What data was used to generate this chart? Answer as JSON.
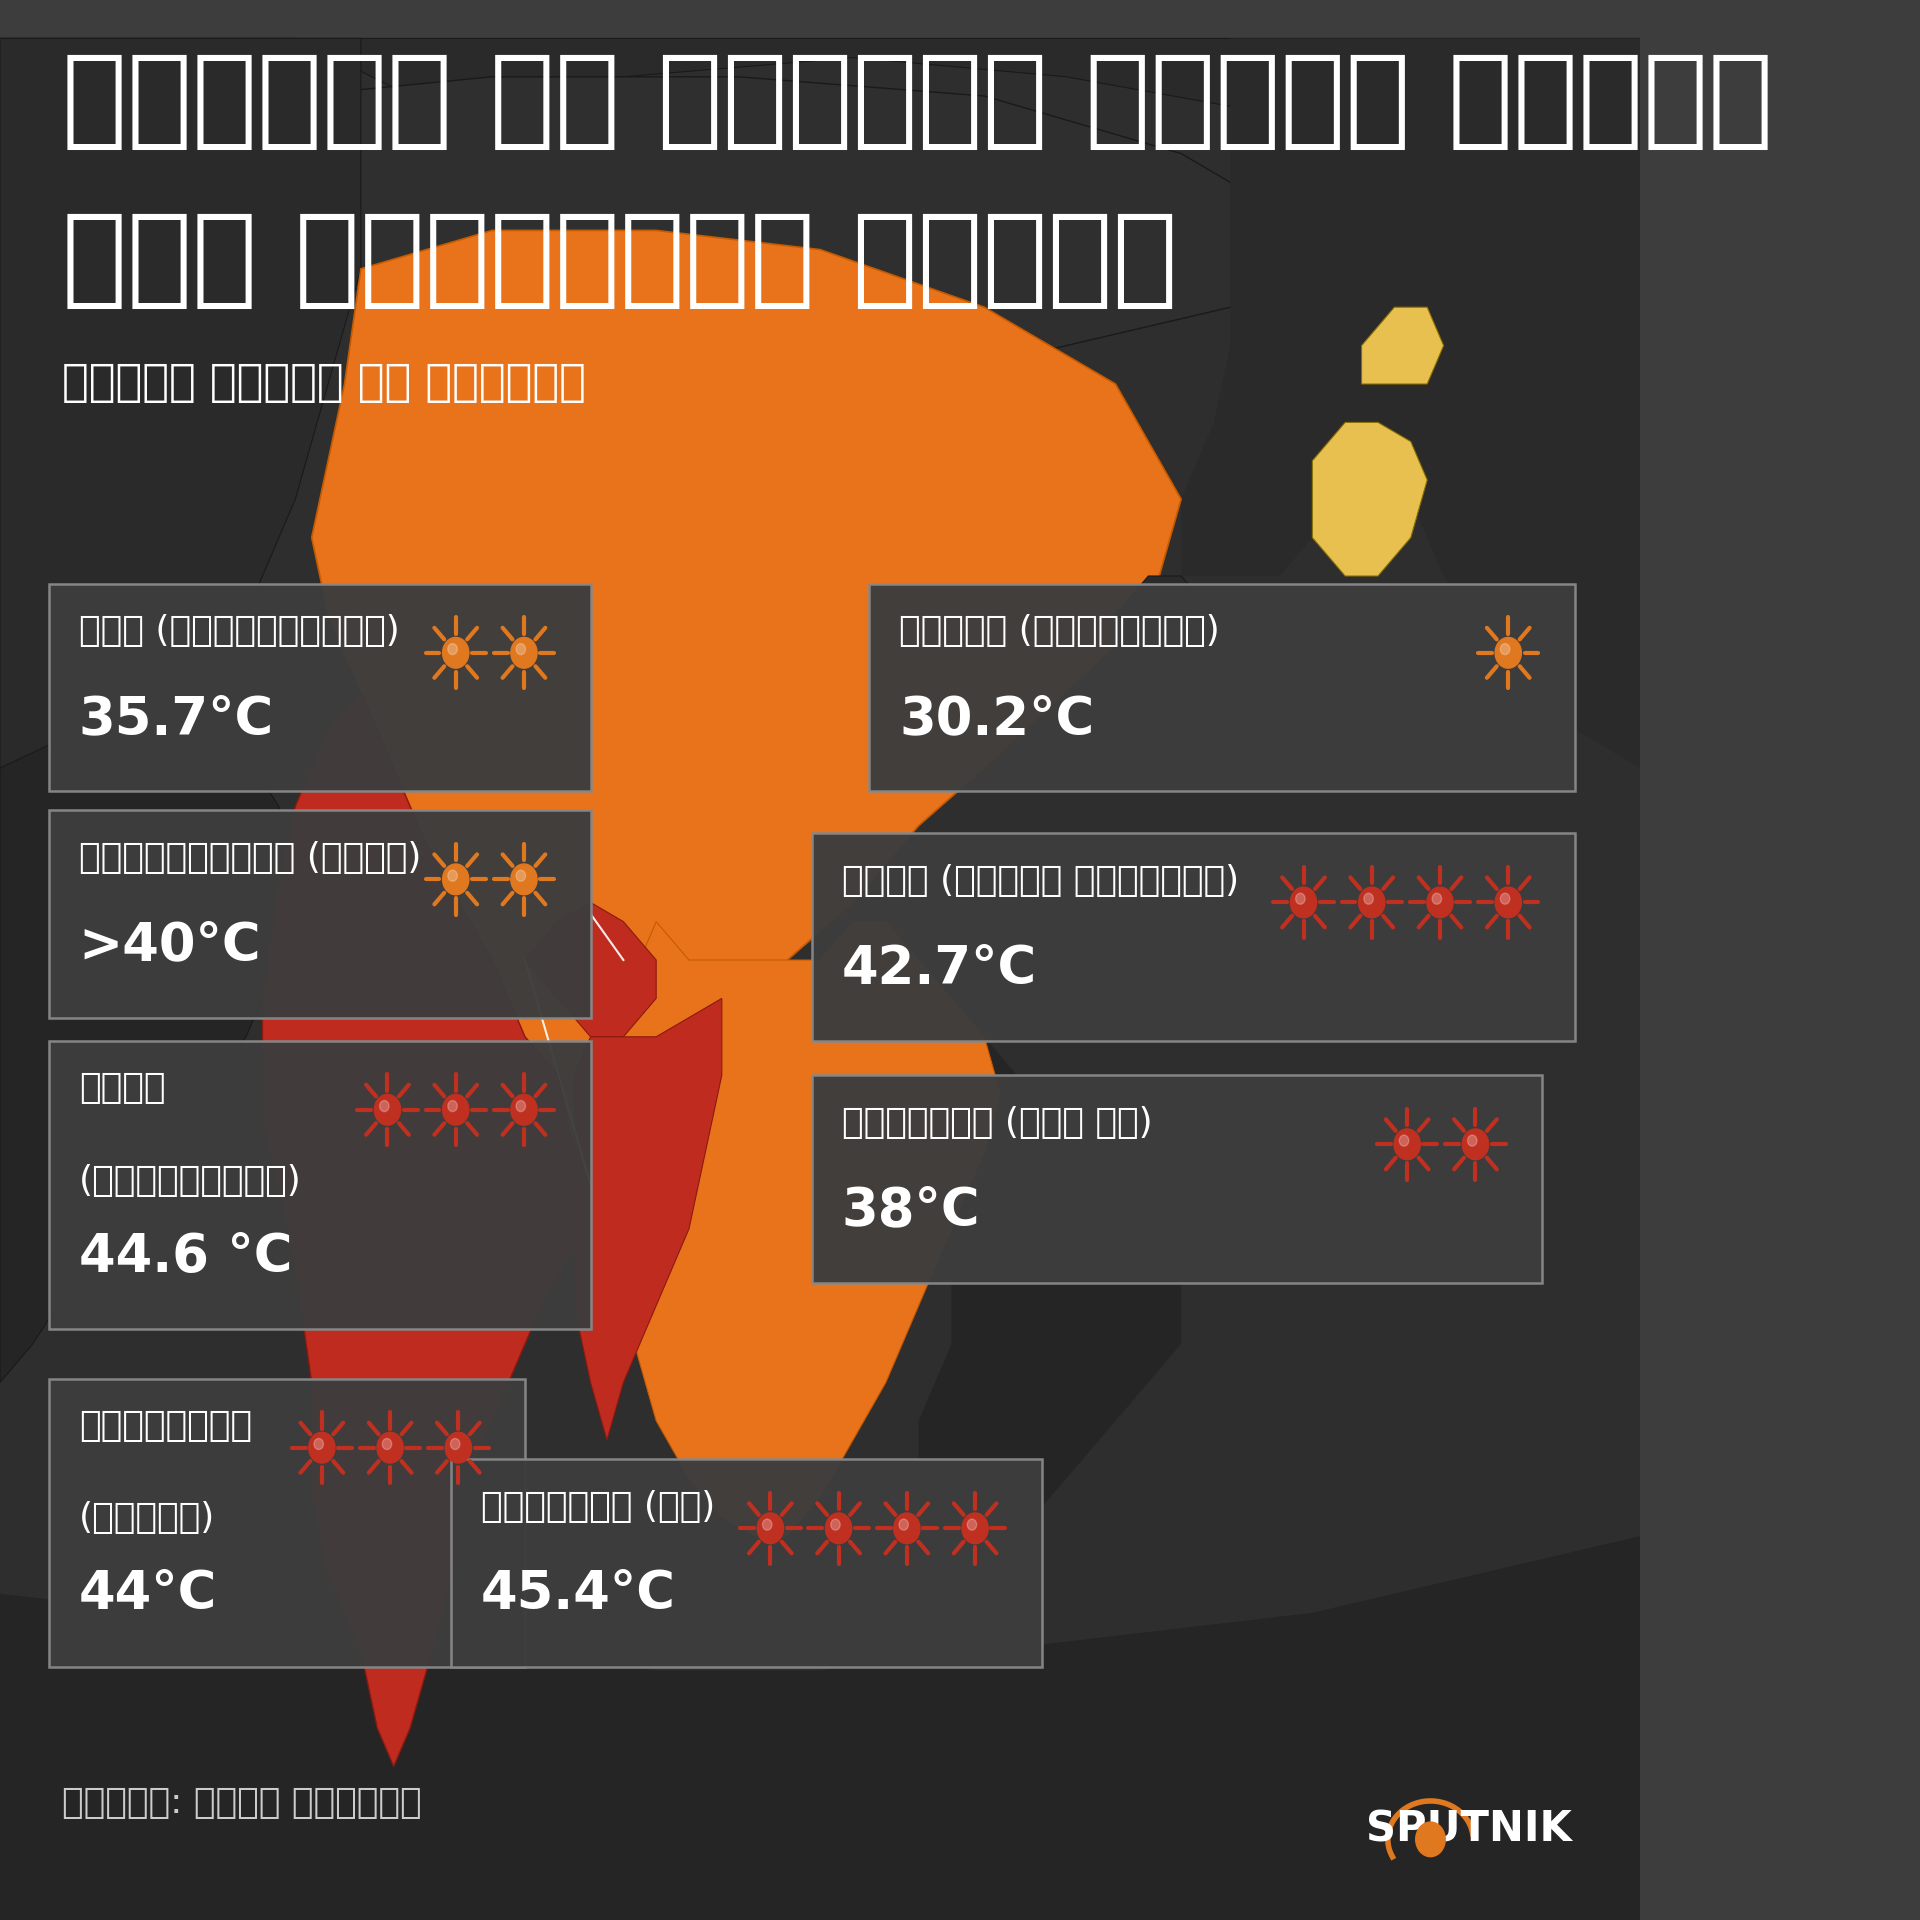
{
  "background_color": "#3d3d3d",
  "title_line1": "दक्षिण और दक्षिण पूर्व एशिया",
  "title_line2": "में असामान्य गर्मी",
  "subtitle": "पिछले हफ्ते के आँकड़े",
  "source": "स्रोत: खुले आँकड़े",
  "sputnik_text": "SPUTNIK",
  "boxes": [
    {
      "id": "china",
      "line1": "चीन (चोंगक्विंग)",
      "line2": "",
      "temp": "35.7°C",
      "suns": 2,
      "sun_color": "#e07820",
      "bx": 0.03,
      "by": 0.588,
      "bw": 0.33,
      "bh": 0.108
    },
    {
      "id": "bangladesh",
      "line1": "बांग्लादेश (ढाका)",
      "line2": "",
      "temp": ">40°C",
      "suns": 2,
      "sun_color": "#e07820",
      "bx": 0.03,
      "by": 0.47,
      "bw": 0.33,
      "bh": 0.108
    },
    {
      "id": "india",
      "line1": "भारत",
      "line2": "(प्रयागराज)",
      "temp": "44.6 °C",
      "suns": 3,
      "sun_color": "#c03020",
      "bx": 0.03,
      "by": 0.308,
      "bw": 0.33,
      "bh": 0.15
    },
    {
      "id": "myanmar",
      "line1": "म्यांमार",
      "line2": "(कलेवा)",
      "temp": "44°C",
      "suns": 3,
      "sun_color": "#c03020",
      "bx": 0.03,
      "by": 0.132,
      "bw": 0.29,
      "bh": 0.15
    },
    {
      "id": "japan",
      "line1": "जापान (मिनामाटो)",
      "line2": "",
      "temp": "30.2°C",
      "suns": 1,
      "sun_color": "#e07820",
      "bx": 0.53,
      "by": 0.588,
      "bw": 0.43,
      "bh": 0.108
    },
    {
      "id": "laos",
      "line1": "लाओस (लुआंग प्रबांग)",
      "line2": "",
      "temp": "42.7°C",
      "suns": 4,
      "sun_color": "#c03020",
      "bx": 0.495,
      "by": 0.458,
      "bw": 0.465,
      "bh": 0.108
    },
    {
      "id": "vietnam",
      "line1": "वियतनाम (सोन ला)",
      "line2": "",
      "temp": "38°C",
      "suns": 2,
      "sun_color": "#c03020",
      "bx": 0.495,
      "by": 0.332,
      "bw": 0.445,
      "bh": 0.108
    },
    {
      "id": "thailand",
      "line1": "थाईलैंड (तक)",
      "line2": "",
      "temp": "45.4°C",
      "suns": 4,
      "sun_color": "#c03020",
      "bx": 0.275,
      "by": 0.132,
      "bw": 0.36,
      "bh": 0.108
    }
  ]
}
